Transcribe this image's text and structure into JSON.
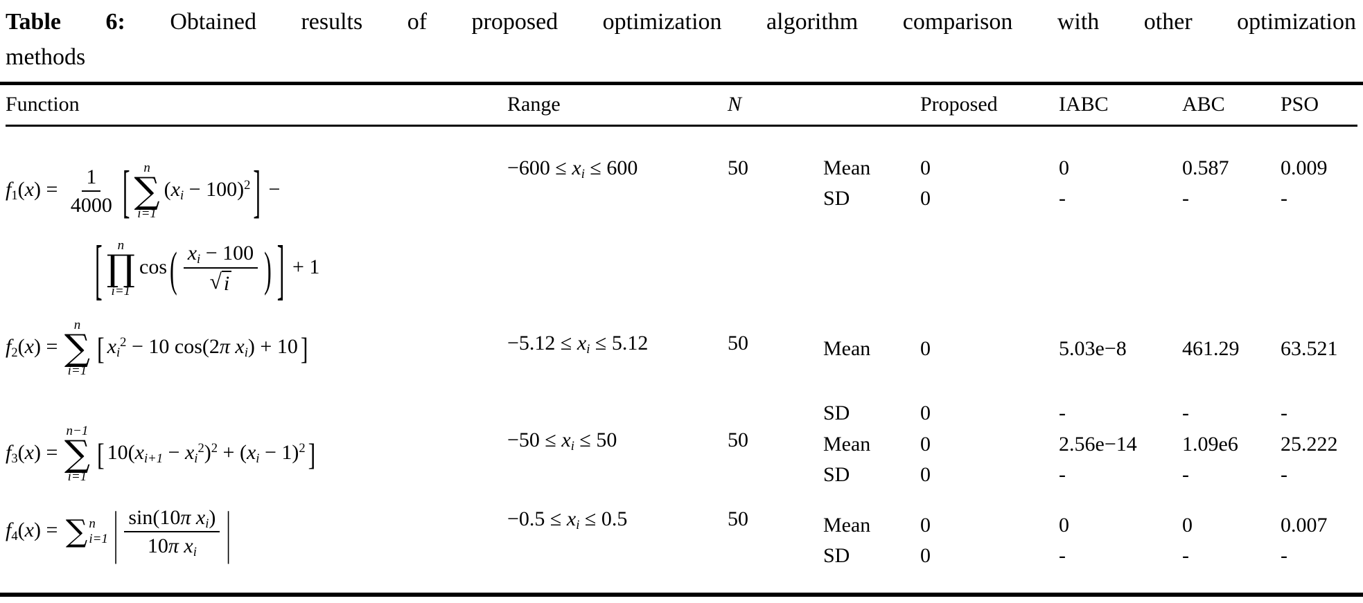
{
  "caption": {
    "label": "Table 6:",
    "text_line1": "Obtained results of proposed optimization algorithm comparison with other optimization",
    "text_line2": "methods"
  },
  "columns": {
    "function": "Function",
    "range": "Range",
    "n": "N",
    "stat": "",
    "proposed": "Proposed",
    "iabc": "IABC",
    "abc": "ABC",
    "pso": "PSO"
  },
  "rows": [
    {
      "formula_lines": [
        [
          {
            "t": "var",
            "v": "f"
          },
          {
            "t": "sub",
            "v": "1"
          },
          {
            "t": "txt",
            "v": "("
          },
          {
            "t": "var",
            "v": "x"
          },
          {
            "t": "txt",
            "v": ") = "
          },
          {
            "t": "frac",
            "num": [
              {
                "t": "txt",
                "v": "1"
              }
            ],
            "den": [
              {
                "t": "txt",
                "v": "4000"
              }
            ]
          },
          {
            "t": "fence",
            "v": "[",
            "sy": 2.6
          },
          {
            "t": "op",
            "sym": "∑",
            "top": "n",
            "bot": "i=1"
          },
          {
            "t": "txt",
            "v": "("
          },
          {
            "t": "var",
            "v": "x"
          },
          {
            "t": "sub",
            "v": "i",
            "it": true
          },
          {
            "t": "txt",
            "v": " − 100)"
          },
          {
            "t": "sup",
            "v": "2"
          },
          {
            "t": "fence",
            "v": "]",
            "sy": 2.6
          },
          {
            "t": "txt",
            "v": " −"
          }
        ],
        [
          {
            "t": "fence",
            "v": "[",
            "sy": 3.0
          },
          {
            "t": "op",
            "sym": "∏",
            "top": "n",
            "bot": "i=1"
          },
          {
            "t": "txt",
            "v": "cos"
          },
          {
            "t": "fence",
            "v": "(",
            "sy": 2.2
          },
          {
            "t": "frac",
            "num": [
              {
                "t": "var",
                "v": "x"
              },
              {
                "t": "sub",
                "v": "i",
                "it": true
              },
              {
                "t": "txt",
                "v": " − 100"
              }
            ],
            "den": [
              {
                "t": "sqrt",
                "v": "i"
              }
            ]
          },
          {
            "t": "fence",
            "v": ")",
            "sy": 2.2
          },
          {
            "t": "fence",
            "v": "]",
            "sy": 3.0
          },
          {
            "t": "txt",
            "v": " + 1"
          }
        ]
      ],
      "range": [
        {
          "t": "txt",
          "v": "−600 ≤ "
        },
        {
          "t": "var",
          "v": "x"
        },
        {
          "t": "sub",
          "v": "i",
          "it": true
        },
        {
          "t": "txt",
          "v": " ≤ 600"
        }
      ],
      "n": "50",
      "stats": [
        {
          "label": "Mean",
          "values": [
            "0",
            "0",
            "0.587",
            "0.009"
          ]
        },
        {
          "label": "SD",
          "values": [
            "0",
            "-",
            "-",
            "-"
          ]
        }
      ]
    },
    {
      "formula_lines": [
        [
          {
            "t": "var",
            "v": "f"
          },
          {
            "t": "sub",
            "v": "2"
          },
          {
            "t": "txt",
            "v": "("
          },
          {
            "t": "var",
            "v": "x"
          },
          {
            "t": "txt",
            "v": ") = "
          },
          {
            "t": "op",
            "sym": "∑",
            "top": "n",
            "bot": "i=1"
          },
          {
            "t": "fence",
            "v": "[",
            "sy": 1.4
          },
          {
            "t": "var",
            "v": "x"
          },
          {
            "t": "sub",
            "v": "i",
            "it": true
          },
          {
            "t": "sup",
            "v": "2"
          },
          {
            "t": "txt",
            "v": " − 10 cos(2"
          },
          {
            "t": "var",
            "v": "π x"
          },
          {
            "t": "sub",
            "v": "i",
            "it": true
          },
          {
            "t": "txt",
            "v": ") + 10"
          },
          {
            "t": "fence",
            "v": "]",
            "sy": 1.4
          }
        ]
      ],
      "range": [
        {
          "t": "txt",
          "v": "−5.12 ≤ "
        },
        {
          "t": "var",
          "v": "x"
        },
        {
          "t": "sub",
          "v": "i",
          "it": true
        },
        {
          "t": "txt",
          "v": " ≤ 5.12"
        }
      ],
      "n": "50",
      "stats": [
        {
          "label": "Mean",
          "values": [
            "0",
            "5.03e−8",
            "461.29",
            "63.521"
          ]
        },
        {
          "label": "SD",
          "values": [
            "0",
            "-",
            "-",
            "-"
          ]
        }
      ]
    },
    {
      "formula_lines": [
        [
          {
            "t": "var",
            "v": "f"
          },
          {
            "t": "sub",
            "v": "3"
          },
          {
            "t": "txt",
            "v": "("
          },
          {
            "t": "var",
            "v": "x"
          },
          {
            "t": "txt",
            "v": ") = "
          },
          {
            "t": "op",
            "sym": "∑",
            "top": "n−1",
            "bot": "i=1"
          },
          {
            "t": "fence",
            "v": "[",
            "sy": 1.4
          },
          {
            "t": "txt",
            "v": "10("
          },
          {
            "t": "var",
            "v": "x"
          },
          {
            "t": "sub",
            "v": "i+1",
            "it": true
          },
          {
            "t": "txt",
            "v": " − "
          },
          {
            "t": "var",
            "v": "x"
          },
          {
            "t": "sub",
            "v": "i",
            "it": true
          },
          {
            "t": "sup",
            "v": "2"
          },
          {
            "t": "txt",
            "v": ")"
          },
          {
            "t": "sup",
            "v": "2"
          },
          {
            "t": "txt",
            "v": " + ("
          },
          {
            "t": "var",
            "v": "x"
          },
          {
            "t": "sub",
            "v": "i",
            "it": true
          },
          {
            "t": "txt",
            "v": " − 1)"
          },
          {
            "t": "sup",
            "v": "2"
          },
          {
            "t": "fence",
            "v": "]",
            "sy": 1.4
          }
        ]
      ],
      "range": [
        {
          "t": "txt",
          "v": "−50 ≤ "
        },
        {
          "t": "var",
          "v": "x"
        },
        {
          "t": "sub",
          "v": "i",
          "it": true
        },
        {
          "t": "txt",
          "v": " ≤ 50"
        }
      ],
      "n": "50",
      "stats": [
        {
          "label": "Mean",
          "values": [
            "0",
            "2.56e−14",
            "1.09e6",
            "25.222"
          ]
        },
        {
          "label": "SD",
          "values": [
            "0",
            "-",
            "-",
            "-"
          ]
        }
      ]
    },
    {
      "formula_lines": [
        [
          {
            "t": "var",
            "v": "f"
          },
          {
            "t": "sub",
            "v": "4"
          },
          {
            "t": "txt",
            "v": "("
          },
          {
            "t": "var",
            "v": "x"
          },
          {
            "t": "txt",
            "v": ") = "
          },
          {
            "t": "op",
            "sym": "∑",
            "top": "n",
            "bot": "i=1",
            "inline": true
          },
          {
            "t": "fence",
            "v": "|",
            "sy": 2.6
          },
          {
            "t": "frac",
            "num": [
              {
                "t": "txt",
                "v": "sin(10"
              },
              {
                "t": "var",
                "v": "π x"
              },
              {
                "t": "sub",
                "v": "i",
                "it": true
              },
              {
                "t": "txt",
                "v": ")"
              }
            ],
            "den": [
              {
                "t": "txt",
                "v": "10"
              },
              {
                "t": "var",
                "v": "π x"
              },
              {
                "t": "sub",
                "v": "i",
                "it": true
              }
            ]
          },
          {
            "t": "fence",
            "v": "|",
            "sy": 2.6
          }
        ]
      ],
      "range": [
        {
          "t": "txt",
          "v": "−0.5 ≤ "
        },
        {
          "t": "var",
          "v": "x"
        },
        {
          "t": "sub",
          "v": "i",
          "it": true
        },
        {
          "t": "txt",
          "v": " ≤ 0.5"
        }
      ],
      "n": "50",
      "stats": [
        {
          "label": "Mean",
          "values": [
            "0",
            "0",
            "0",
            "0.007"
          ]
        },
        {
          "label": "SD",
          "values": [
            "0",
            "-",
            "-",
            "-"
          ]
        }
      ]
    }
  ]
}
